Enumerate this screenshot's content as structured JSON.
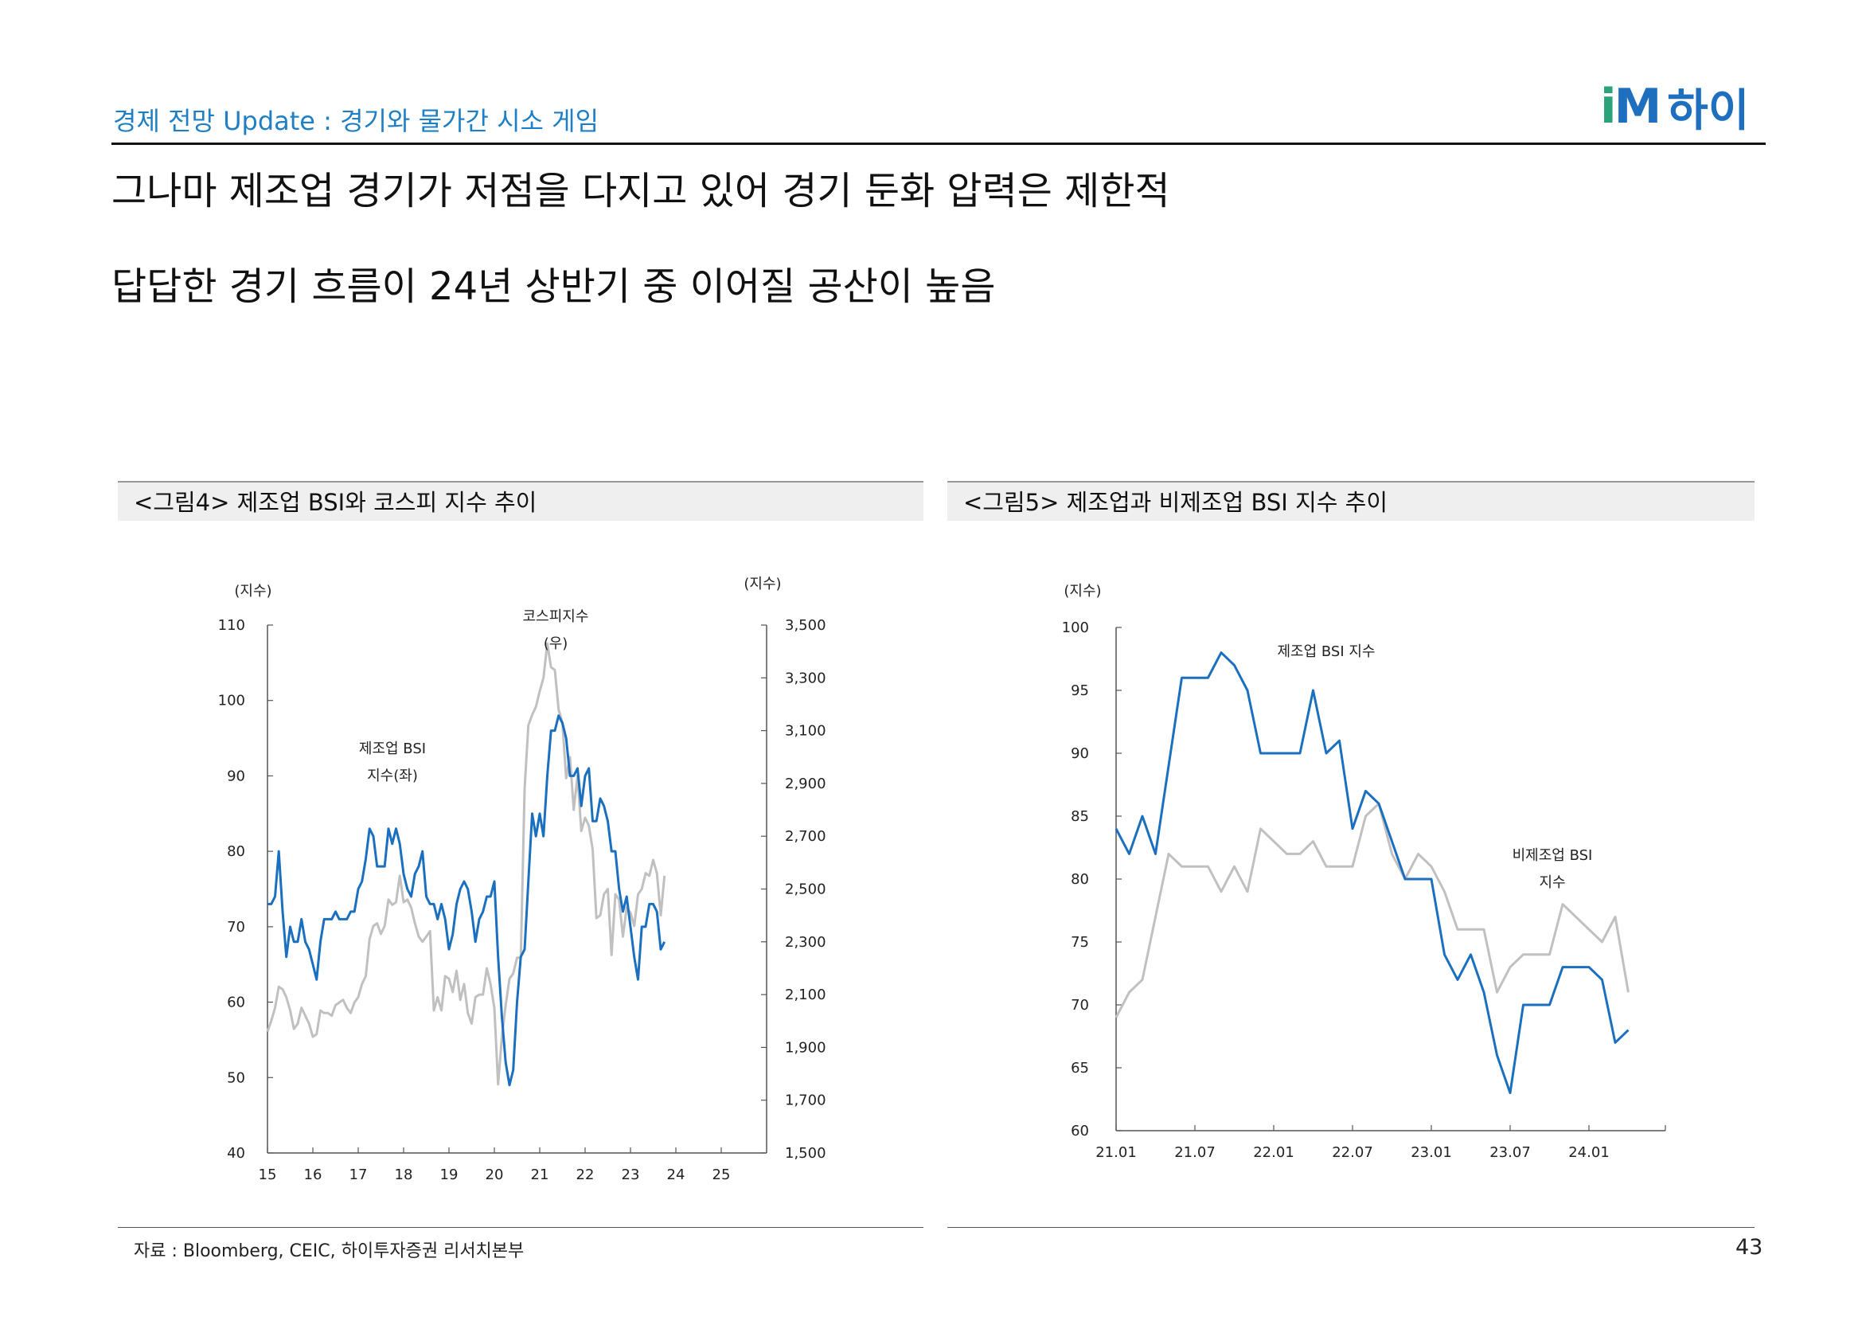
{
  "header": {
    "subtitle": "경제 전망 Update : 경기와 물가간 시소 게임",
    "logo_mark_i": "i",
    "logo_mark_m": "M",
    "logo_name": "하이",
    "headline_1": "그나마 제조업 경기가 저점을 다지고 있어 경기 둔화 압력은 제한적",
    "headline_2": "답답한 경기 흐름이 24년 상반기 중 이어질 공산이 높음"
  },
  "panels": [
    {
      "title": "<그림4> 제조업 BSI와 코스피 지수 추이"
    },
    {
      "title": "<그림5> 제조업과 비제조업 BSI 지수 추이"
    }
  ],
  "footer": {
    "source": "자료 : Bloomberg, CEIC, 하이투자증권 리서치본부",
    "page_number": "43"
  },
  "colors": {
    "accent_blue": "#1f7fc4",
    "series_blue": "#1a6fbf",
    "series_gray": "#c0c0c0",
    "logo_green": "#2aa37a"
  },
  "chart_data": [
    {
      "type": "line",
      "title": "<그림4> 제조업 BSI와 코스피 지수 추이",
      "left_unit": "(지수)",
      "right_unit": "(지수)",
      "x_ticks": [
        "15",
        "16",
        "17",
        "18",
        "19",
        "20",
        "21",
        "22",
        "23",
        "24",
        "25"
      ],
      "xlim": [
        2015,
        2026
      ],
      "ylim_left": [
        40,
        110
      ],
      "ytick_labels_left": [
        "40",
        "50",
        "60",
        "70",
        "80",
        "90",
        "100",
        "110"
      ],
      "ylim_right": [
        1500,
        3500
      ],
      "ytick_labels_right": [
        "1,500",
        "1,700",
        "1,900",
        "2,100",
        "2,300",
        "2,500",
        "2,700",
        "2,900",
        "3,100",
        "3,300",
        "3,500"
      ],
      "series": [
        {
          "name": "제조업 BSI",
          "label_lines": [
            "제조업 BSI",
            "지수(좌)"
          ],
          "axis": "left",
          "color": "#1a6fbf",
          "start": 2015.0,
          "step": 0.08333,
          "values": [
            73,
            73,
            74,
            80,
            72,
            66,
            70,
            68,
            68,
            71,
            68,
            67,
            65,
            63,
            68,
            71,
            71,
            71,
            72,
            71,
            71,
            71,
            72,
            72,
            75,
            76,
            79,
            83,
            82,
            78,
            78,
            78,
            83,
            81,
            83,
            81,
            77,
            75,
            74,
            77,
            78,
            80,
            74,
            73,
            73,
            71,
            73,
            71,
            67,
            69,
            73,
            75,
            76,
            75,
            72,
            68,
            71,
            72,
            74,
            74,
            76,
            66,
            58,
            52,
            49,
            51,
            60,
            66,
            67,
            76,
            85,
            82,
            85,
            82,
            90,
            96,
            96,
            98,
            97,
            95,
            90,
            90,
            91,
            86,
            90,
            91,
            84,
            84,
            87,
            86,
            84,
            80,
            80,
            75,
            72,
            74,
            70,
            66,
            63,
            70,
            70,
            73,
            73,
            72,
            67,
            68
          ]
        },
        {
          "name": "코스피지수",
          "label_lines": [
            "코스피지수",
            "(우)"
          ],
          "axis": "right",
          "color": "#c0c0c0",
          "start": 2015.0,
          "step": 0.08333,
          "values": [
            1960,
            2000,
            2050,
            2130,
            2120,
            2090,
            2040,
            1970,
            1990,
            2050,
            2020,
            1990,
            1940,
            1950,
            2040,
            2030,
            2030,
            2020,
            2060,
            2070,
            2080,
            2050,
            2030,
            2070,
            2090,
            2140,
            2170,
            2310,
            2360,
            2370,
            2330,
            2360,
            2460,
            2440,
            2450,
            2550,
            2450,
            2460,
            2430,
            2370,
            2320,
            2300,
            2320,
            2340,
            2040,
            2090,
            2040,
            2170,
            2160,
            2110,
            2190,
            2080,
            2140,
            2030,
            1990,
            2090,
            2100,
            2100,
            2200,
            2140,
            2050,
            1760,
            1940,
            2060,
            2160,
            2180,
            2240,
            2240,
            2880,
            3120,
            3160,
            3190,
            3250,
            3300,
            3430,
            3340,
            3330,
            3180,
            3130,
            2920,
            3000,
            2800,
            2930,
            2720,
            2770,
            2740,
            2650,
            2390,
            2400,
            2480,
            2500,
            2250,
            2480,
            2460,
            2320,
            2430,
            2410,
            2360,
            2480,
            2500,
            2560,
            2550,
            2610,
            2560,
            2400,
            2550
          ]
        }
      ],
      "annotations": []
    },
    {
      "type": "line",
      "title": "<그림5> 제조업과 비제조업 BSI 지수 추이",
      "y_unit": "(지수)",
      "x_ticks": [
        "21.01",
        "21.07",
        "22.01",
        "22.07",
        "23.01",
        "23.07",
        "24.01"
      ],
      "ylim": [
        60,
        100
      ],
      "ytick_labels": [
        "60",
        "65",
        "70",
        "75",
        "80",
        "85",
        "90",
        "95",
        "100"
      ],
      "series": [
        {
          "name": "제조업 BSI 지수",
          "color": "#1a6fbf",
          "values": [
            84,
            82,
            85,
            82,
            89,
            96,
            96,
            96,
            98,
            97,
            95,
            90,
            90,
            90,
            90,
            95,
            90,
            91,
            84,
            87,
            86,
            83,
            80,
            80,
            80,
            74,
            72,
            74,
            71,
            66,
            63,
            70,
            70,
            70,
            73,
            73,
            73,
            72,
            67,
            68
          ]
        },
        {
          "name": "비제조업 BSI",
          "label_lines": [
            "비제조업 BSI",
            "지수"
          ],
          "color": "#c0c0c0",
          "values": [
            69,
            71,
            72,
            77,
            82,
            81,
            81,
            81,
            79,
            81,
            79,
            84,
            83,
            82,
            82,
            83,
            81,
            81,
            81,
            85,
            86,
            82,
            80,
            82,
            81,
            79,
            76,
            76,
            76,
            71,
            73,
            74,
            74,
            74,
            78,
            77,
            76,
            75,
            77,
            71
          ]
        }
      ]
    }
  ]
}
